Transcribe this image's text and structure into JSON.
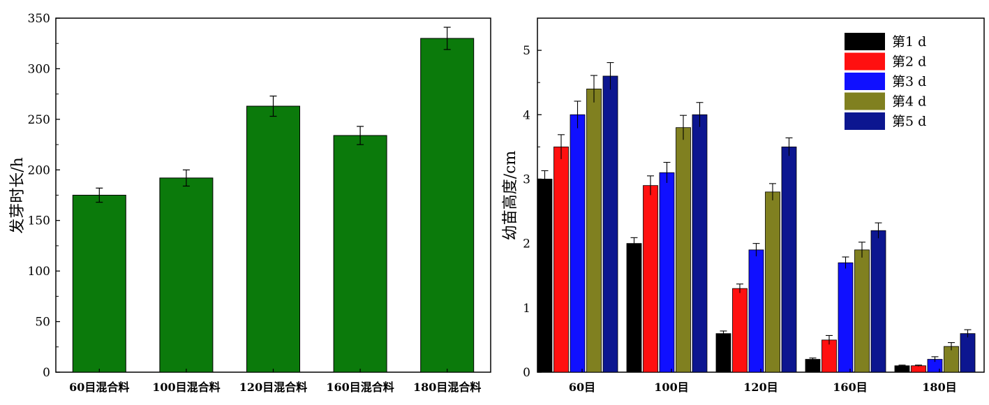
{
  "chart_data": [
    {
      "type": "bar",
      "ylabel": "发芽时长/h",
      "categories": [
        "60目混合料",
        "100目混合料",
        "120目混合料",
        "160目混合料",
        "180目混合料"
      ],
      "values": [
        175,
        192,
        263,
        234,
        330
      ],
      "errors": [
        7,
        8,
        10,
        9,
        11
      ],
      "ylim": [
        0,
        350
      ],
      "yticks": [
        0,
        50,
        100,
        150,
        200,
        250,
        300,
        350
      ],
      "bar_color": "#0b7a0b",
      "grid": false
    },
    {
      "type": "bar",
      "ylabel": "幼苗高度/cm",
      "categories": [
        "60目",
        "100目",
        "120目",
        "160目",
        "180目"
      ],
      "series": [
        {
          "name": "第1 d",
          "color": "#000000",
          "values": [
            3.0,
            2.0,
            0.6,
            0.2,
            0.1
          ],
          "errors": [
            0.13,
            0.09,
            0.04,
            0.02,
            0.01
          ]
        },
        {
          "name": "第2 d",
          "color": "#ff1010",
          "values": [
            3.5,
            2.9,
            1.3,
            0.5,
            0.1
          ],
          "errors": [
            0.19,
            0.15,
            0.07,
            0.07,
            0.01
          ]
        },
        {
          "name": "第3 d",
          "color": "#1010ff",
          "values": [
            4.0,
            3.1,
            1.9,
            1.7,
            0.2
          ],
          "errors": [
            0.21,
            0.16,
            0.1,
            0.09,
            0.04
          ]
        },
        {
          "name": "第4 d",
          "color": "#808020",
          "values": [
            4.4,
            3.8,
            2.8,
            1.9,
            0.4
          ],
          "errors": [
            0.21,
            0.19,
            0.13,
            0.12,
            0.06
          ]
        },
        {
          "name": "第5 d",
          "color": "#0c1690",
          "values": [
            4.6,
            4.0,
            3.5,
            2.2,
            0.6
          ],
          "errors": [
            0.21,
            0.19,
            0.14,
            0.12,
            0.06
          ]
        }
      ],
      "ylim": [
        0,
        5.5
      ],
      "yticks": [
        0,
        1,
        2,
        3,
        4,
        5
      ],
      "legend_position": "top-right",
      "grid": false
    }
  ]
}
